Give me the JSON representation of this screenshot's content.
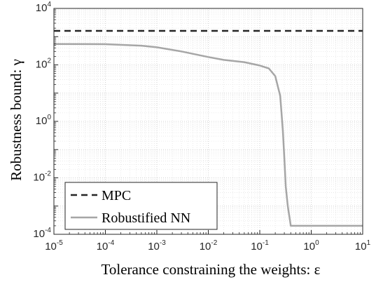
{
  "chart_data": {
    "type": "line",
    "xlabel": "Tolerance constraining the weights: ε",
    "ylabel": "Robustness bound: γ",
    "xscale": "log",
    "yscale": "log",
    "xlim": [
      1e-05,
      10
    ],
    "ylim": [
      0.0001,
      10000
    ],
    "x_ticks": [
      {
        "value": 1e-05,
        "base": "10",
        "exp": "-5"
      },
      {
        "value": 0.0001,
        "base": "10",
        "exp": "-4"
      },
      {
        "value": 0.001,
        "base": "10",
        "exp": "-3"
      },
      {
        "value": 0.01,
        "base": "10",
        "exp": "-2"
      },
      {
        "value": 0.1,
        "base": "10",
        "exp": "-1"
      },
      {
        "value": 1,
        "base": "10",
        "exp": "0"
      },
      {
        "value": 10,
        "base": "10",
        "exp": "1"
      }
    ],
    "y_ticks": [
      {
        "value": 0.0001,
        "base": "10",
        "exp": "-4"
      },
      {
        "value": 0.01,
        "base": "10",
        "exp": "-2"
      },
      {
        "value": 1,
        "base": "10",
        "exp": "0"
      },
      {
        "value": 100,
        "base": "10",
        "exp": "2"
      },
      {
        "value": 10000,
        "base": "10",
        "exp": "4"
      }
    ],
    "grid": true,
    "minor_grid": true,
    "legend_position": "bottom-left",
    "series": [
      {
        "name": "MPC",
        "style": "dashed",
        "color": "#262626",
        "x": [
          1e-05,
          10
        ],
        "y": [
          1600,
          1600
        ]
      },
      {
        "name": "Robustified NN",
        "style": "solid",
        "color": "#a6a6a6",
        "x": [
          1e-05,
          0.0001,
          0.0005,
          0.001,
          0.003,
          0.01,
          0.02,
          0.05,
          0.1,
          0.15,
          0.2,
          0.25,
          0.28,
          0.3,
          0.32,
          0.35,
          0.4,
          0.42,
          1,
          10
        ],
        "y": [
          550,
          540,
          480,
          420,
          300,
          190,
          150,
          125,
          95,
          75,
          40,
          8,
          0.5,
          0.05,
          0.005,
          0.001,
          0.0002,
          0.0002,
          0.0002,
          0.0002
        ]
      }
    ]
  }
}
